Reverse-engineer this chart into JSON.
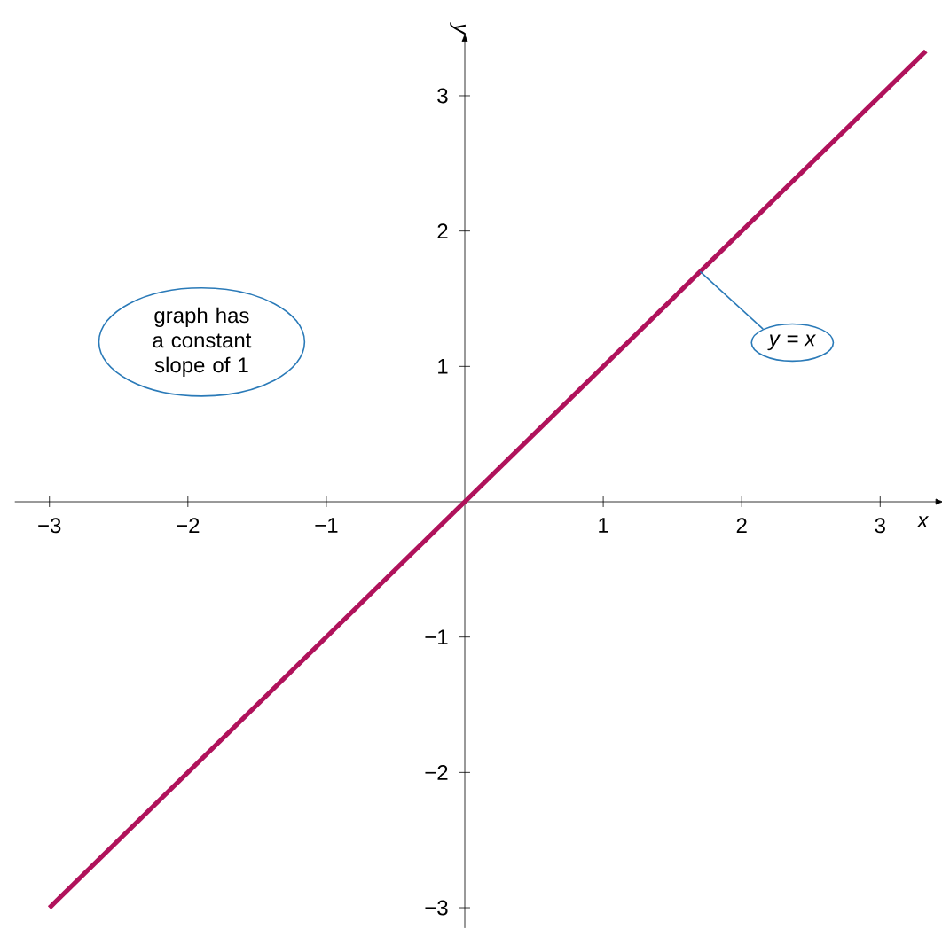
{
  "chart_data": {
    "type": "line",
    "xlabel": "x",
    "ylabel": "y",
    "x": [
      -3,
      3.33
    ],
    "series": [
      {
        "color": "#b0125b",
        "values": [
          -3,
          3.33
        ]
      }
    ],
    "xlim": [
      -3.25,
      3.4
    ],
    "ylim": [
      -3.15,
      3.4
    ],
    "xticks": [
      {
        "value": -3,
        "label": "−3"
      },
      {
        "value": -2,
        "label": "−2"
      },
      {
        "value": -1,
        "label": "−1"
      },
      1,
      2,
      3
    ],
    "yticks": [
      {
        "value": -3,
        "label": "−3"
      },
      {
        "value": -2,
        "label": "−2"
      },
      {
        "value": -1,
        "label": "−1"
      },
      1,
      2,
      3
    ],
    "marker": "none",
    "line_style": "solid",
    "annotations": [
      "graph has a constant slope of 1",
      {
        "text": "*y* = *x*",
        "x": 1.7,
        "y": 1.7
      }
    ]
  }
}
